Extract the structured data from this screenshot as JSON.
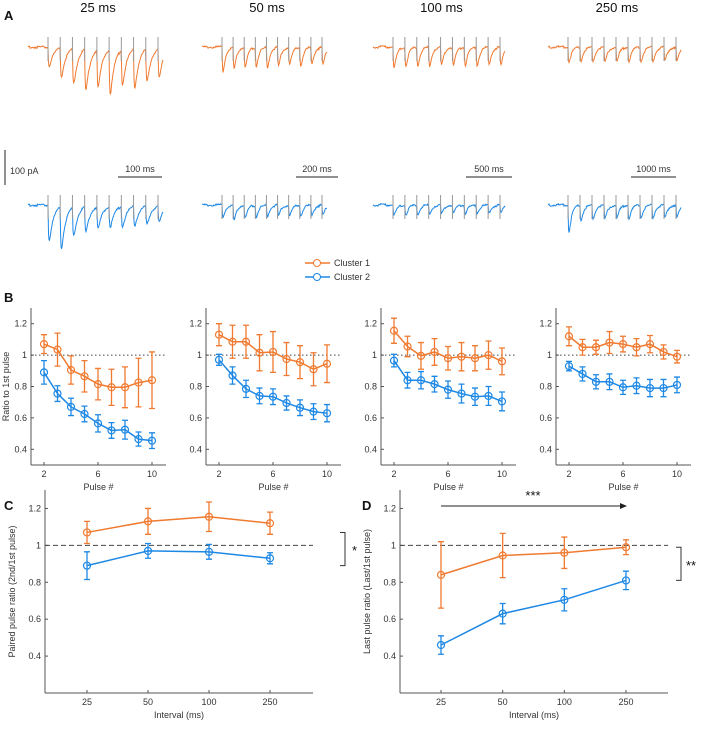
{
  "colors": {
    "cluster1": "#f07a30",
    "cluster2": "#1e88e5",
    "stim": "#999999"
  },
  "panel_labels": {
    "a": "A",
    "b": "B",
    "c": "C",
    "d": "D"
  },
  "panel_a": {
    "titles": [
      "25 ms",
      "50 ms",
      "100 ms",
      "250 ms"
    ],
    "scale_current": "100 pA",
    "scale_time": [
      "100 ms",
      "200 ms",
      "500 ms",
      "1000 ms"
    ]
  },
  "legend": [
    "Cluster 1",
    "Cluster 2"
  ],
  "chart_data": [
    {
      "panel": "B",
      "condition": "25 ms",
      "type": "line",
      "x": [
        2,
        3,
        4,
        5,
        6,
        7,
        8,
        9,
        10
      ],
      "xlabel": "Pulse #",
      "ylabel": "Ratio to 1st pulse",
      "ylim": [
        0.3,
        1.3
      ],
      "xticks": [
        2,
        6,
        10
      ],
      "yticks": [
        0.4,
        0.6,
        0.8,
        1,
        1.2
      ],
      "reference_line": 1,
      "series": [
        {
          "name": "Cluster 1",
          "values": [
            1.07,
            1.035,
            0.905,
            0.865,
            0.815,
            0.795,
            0.795,
            0.825,
            0.84
          ],
          "errors": [
            0.06,
            0.105,
            0.09,
            0.1,
            0.1,
            0.115,
            0.13,
            0.155,
            0.18
          ]
        },
        {
          "name": "Cluster 2",
          "values": [
            0.89,
            0.755,
            0.67,
            0.625,
            0.565,
            0.52,
            0.525,
            0.465,
            0.455
          ],
          "errors": [
            0.075,
            0.05,
            0.055,
            0.05,
            0.055,
            0.05,
            0.06,
            0.045,
            0.05
          ]
        }
      ]
    },
    {
      "panel": "B",
      "condition": "50 ms",
      "type": "line",
      "x": [
        2,
        3,
        4,
        5,
        6,
        7,
        8,
        9,
        10
      ],
      "xlabel": "Pulse #",
      "ylabel": "",
      "ylim": [
        0.3,
        1.3
      ],
      "xticks": [
        2,
        6,
        10
      ],
      "yticks": [
        0.4,
        0.6,
        0.8,
        1,
        1.2
      ],
      "reference_line": 1,
      "series": [
        {
          "name": "Cluster 1",
          "values": [
            1.13,
            1.085,
            1.085,
            1.015,
            1.02,
            0.975,
            0.955,
            0.91,
            0.945
          ],
          "errors": [
            0.07,
            0.105,
            0.105,
            0.115,
            0.13,
            0.105,
            0.105,
            0.105,
            0.12
          ]
        },
        {
          "name": "Cluster 2",
          "values": [
            0.97,
            0.87,
            0.785,
            0.74,
            0.735,
            0.695,
            0.665,
            0.64,
            0.63
          ],
          "errors": [
            0.035,
            0.055,
            0.055,
            0.05,
            0.05,
            0.045,
            0.05,
            0.05,
            0.055
          ]
        }
      ]
    },
    {
      "panel": "B",
      "condition": "100 ms",
      "type": "line",
      "x": [
        2,
        3,
        4,
        5,
        6,
        7,
        8,
        9,
        10
      ],
      "xlabel": "Pulse #",
      "ylabel": "",
      "ylim": [
        0.3,
        1.3
      ],
      "xticks": [
        2,
        6,
        10
      ],
      "yticks": [
        0.4,
        0.6,
        0.8,
        1,
        1.2
      ],
      "reference_line": 1,
      "series": [
        {
          "name": "Cluster 1",
          "values": [
            1.155,
            1.055,
            0.995,
            1.02,
            0.98,
            0.99,
            0.98,
            1.0,
            0.96
          ],
          "errors": [
            0.08,
            0.065,
            0.085,
            0.085,
            0.075,
            0.09,
            0.08,
            0.09,
            0.085
          ]
        },
        {
          "name": "Cluster 2",
          "values": [
            0.965,
            0.84,
            0.84,
            0.815,
            0.78,
            0.755,
            0.735,
            0.74,
            0.705
          ],
          "errors": [
            0.04,
            0.05,
            0.055,
            0.05,
            0.055,
            0.06,
            0.055,
            0.06,
            0.06
          ]
        }
      ]
    },
    {
      "panel": "B",
      "condition": "250 ms",
      "type": "line",
      "x": [
        2,
        3,
        4,
        5,
        6,
        7,
        8,
        9,
        10
      ],
      "xlabel": "Pulse #",
      "ylabel": "",
      "ylim": [
        0.3,
        1.3
      ],
      "xticks": [
        2,
        6,
        10
      ],
      "yticks": [
        0.4,
        0.6,
        0.8,
        1,
        1.2
      ],
      "reference_line": 1,
      "series": [
        {
          "name": "Cluster 1",
          "values": [
            1.12,
            1.05,
            1.05,
            1.08,
            1.07,
            1.05,
            1.07,
            1.02,
            0.99
          ],
          "errors": [
            0.06,
            0.05,
            0.045,
            0.07,
            0.05,
            0.055,
            0.055,
            0.045,
            0.04
          ]
        },
        {
          "name": "Cluster 2",
          "values": [
            0.93,
            0.88,
            0.83,
            0.83,
            0.795,
            0.805,
            0.79,
            0.79,
            0.81
          ],
          "errors": [
            0.03,
            0.045,
            0.045,
            0.05,
            0.045,
            0.05,
            0.055,
            0.055,
            0.05
          ]
        }
      ]
    },
    {
      "panel": "C",
      "type": "line",
      "categories": [
        "25",
        "50",
        "100",
        "250"
      ],
      "xlabel": "Interval (ms)",
      "ylabel": "Paired pulse ratio (2nd/1st pulse)",
      "ylim": [
        0.2,
        1.3
      ],
      "yticks": [
        0.4,
        0.6,
        0.8,
        1,
        1.2
      ],
      "reference_line": 1,
      "significance": "*",
      "series": [
        {
          "name": "Cluster 1",
          "values": [
            1.07,
            1.13,
            1.155,
            1.12
          ],
          "errors": [
            0.06,
            0.07,
            0.08,
            0.06
          ]
        },
        {
          "name": "Cluster 2",
          "values": [
            0.89,
            0.97,
            0.965,
            0.93
          ],
          "errors": [
            0.075,
            0.04,
            0.04,
            0.03
          ]
        }
      ]
    },
    {
      "panel": "D",
      "type": "line",
      "categories": [
        "25",
        "50",
        "100",
        "250"
      ],
      "xlabel": "Interval (ms)",
      "ylabel": "Last pulse ratio (Last/1st pulse)",
      "ylim": [
        0.2,
        1.3
      ],
      "yticks": [
        0.4,
        0.6,
        0.8,
        1,
        1.2
      ],
      "reference_line": 1,
      "significance": "**",
      "trend_significance": "***",
      "series": [
        {
          "name": "Cluster 1",
          "values": [
            0.84,
            0.945,
            0.96,
            0.99
          ],
          "errors": [
            0.18,
            0.12,
            0.085,
            0.04
          ]
        },
        {
          "name": "Cluster 2",
          "values": [
            0.46,
            0.63,
            0.705,
            0.81
          ],
          "errors": [
            0.05,
            0.055,
            0.06,
            0.05
          ]
        }
      ]
    }
  ]
}
